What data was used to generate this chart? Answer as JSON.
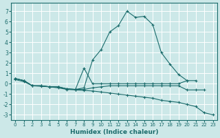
{
  "xlabel": "Humidex (Indice chaleur)",
  "bg_color": "#cce8e8",
  "line_color": "#1a6b6b",
  "grid_color": "#b8d8d8",
  "xlim": [
    -0.5,
    23.5
  ],
  "ylim": [
    -3.5,
    7.8
  ],
  "yticks": [
    -3,
    -2,
    -1,
    0,
    1,
    2,
    3,
    4,
    5,
    6,
    7
  ],
  "xticks": [
    0,
    1,
    2,
    3,
    4,
    5,
    6,
    7,
    8,
    9,
    10,
    11,
    12,
    13,
    14,
    15,
    16,
    17,
    18,
    19,
    20,
    21,
    22,
    23
  ],
  "lines": [
    {
      "x": [
        0,
        1,
        2,
        3,
        4,
        5,
        6,
        7,
        8,
        9,
        10,
        11,
        12,
        13,
        14,
        15,
        16,
        17,
        18,
        19,
        20
      ],
      "y": [
        0.5,
        0.3,
        -0.2,
        -0.2,
        -0.3,
        -0.3,
        -0.5,
        -0.55,
        -0.4,
        2.3,
        3.3,
        5.0,
        5.6,
        7.0,
        6.4,
        6.5,
        5.7,
        3.0,
        1.9,
        0.9,
        0.3
      ]
    },
    {
      "x": [
        0,
        1,
        2,
        3,
        4,
        5,
        6,
        7,
        8,
        9,
        10,
        11,
        12,
        13,
        14,
        15,
        16,
        17,
        18,
        19,
        20,
        21
      ],
      "y": [
        0.5,
        0.3,
        -0.2,
        -0.2,
        -0.3,
        -0.3,
        -0.5,
        -0.55,
        1.5,
        0.0,
        0.0,
        0.0,
        0.0,
        0.0,
        0.0,
        0.0,
        0.0,
        0.0,
        0.0,
        0.0,
        0.3,
        0.3
      ]
    },
    {
      "x": [
        0,
        1,
        2,
        3,
        4,
        5,
        6,
        7,
        8,
        9,
        10,
        11,
        12,
        13,
        14,
        15,
        16,
        17,
        18,
        19,
        20,
        21,
        22
      ],
      "y": [
        0.5,
        0.3,
        -0.2,
        -0.2,
        -0.3,
        -0.3,
        -0.5,
        -0.55,
        -0.55,
        -0.4,
        -0.3,
        -0.2,
        -0.2,
        -0.2,
        -0.2,
        -0.2,
        -0.2,
        -0.2,
        -0.2,
        -0.2,
        -0.6,
        -0.6,
        -0.6
      ]
    },
    {
      "x": [
        0,
        1,
        2,
        3,
        4,
        5,
        6,
        7,
        8,
        9,
        10,
        11,
        12,
        13,
        14,
        15,
        16,
        17,
        18,
        19,
        20,
        21,
        22,
        23
      ],
      "y": [
        0.4,
        0.2,
        -0.2,
        -0.25,
        -0.3,
        -0.4,
        -0.55,
        -0.6,
        -0.65,
        -0.7,
        -0.8,
        -0.9,
        -1.0,
        -1.1,
        -1.2,
        -1.3,
        -1.4,
        -1.6,
        -1.7,
        -1.8,
        -2.0,
        -2.2,
        -2.8,
        -3.0
      ]
    }
  ]
}
